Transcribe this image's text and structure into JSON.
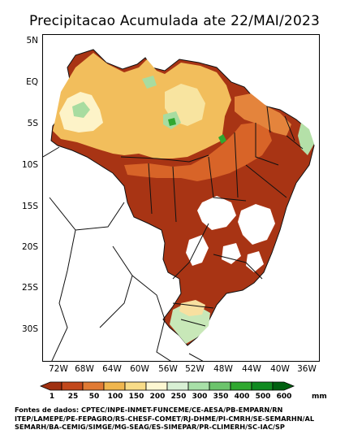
{
  "title": "Precipitacao Acumulada ate 22/MAI/2023",
  "map": {
    "lat_labels": [
      "5N",
      "EQ",
      "5S",
      "10S",
      "15S",
      "20S",
      "25S",
      "30S"
    ],
    "lon_labels": [
      "72W",
      "68W",
      "64W",
      "60W",
      "56W",
      "52W",
      "48W",
      "44W",
      "40W",
      "36W"
    ]
  },
  "legend": {
    "ticks": [
      "1",
      "25",
      "50",
      "100",
      "150",
      "200",
      "250",
      "300",
      "350",
      "400",
      "500",
      "600"
    ],
    "unit": "mm",
    "colors": [
      "#a03010",
      "#c2481c",
      "#e07a34",
      "#f0b64e",
      "#f8dc88",
      "#fdf7d2",
      "#d8f0d4",
      "#a8e0a8",
      "#6cc46c",
      "#30a830",
      "#108a20",
      "#006010"
    ]
  },
  "sources": [
    "Fontes de dados: CPTEC/INPE-INMET-FUNCEME/CE-AESA/PB-EMPARN/RN",
    "ITEP/LAMEPE/PE-FEPAGRO/RS-CHESF-COMET/RJ-DHME/PI-CMRH/SE-SEMARHN/AL",
    "SEMARH/BA-CEMIG/SIMGE/MG-SEAG/ES-SIMEPAR/PR-CLIMERH/SC-IAC/SP"
  ]
}
